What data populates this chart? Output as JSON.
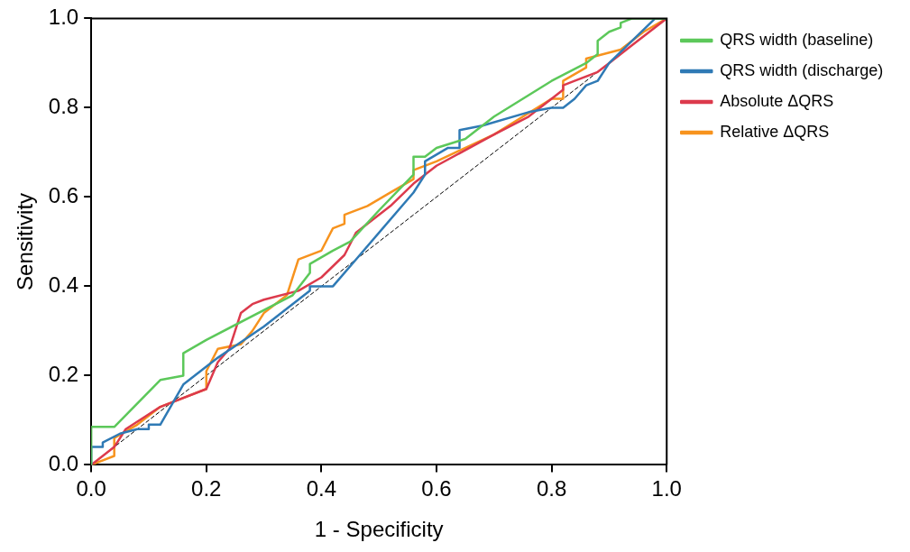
{
  "chart_data": {
    "type": "line",
    "xlabel": "1 - Specificity",
    "ylabel": "Sensitivity",
    "xlim": [
      0,
      1
    ],
    "ylim": [
      0,
      1
    ],
    "xticks": [
      {
        "value": 0,
        "label": "0.0"
      },
      {
        "value": 0.2,
        "label": "0.2"
      },
      {
        "value": 0.4,
        "label": "0.4"
      },
      {
        "value": 0.6,
        "label": "0.6"
      },
      {
        "value": 0.8,
        "label": "0.8"
      },
      {
        "value": 1,
        "label": "1.0"
      }
    ],
    "yticks": [
      {
        "value": 0,
        "label": "0.0"
      },
      {
        "value": 0.2,
        "label": "0.2"
      },
      {
        "value": 0.4,
        "label": "0.4"
      },
      {
        "value": 0.6,
        "label": "0.6"
      },
      {
        "value": 0.8,
        "label": "0.8"
      },
      {
        "value": 1,
        "label": "1.0"
      }
    ],
    "grid": false,
    "legend": "right",
    "marker": "none",
    "line_style": "solid",
    "series": [
      {
        "name": "QRS width (baseline)",
        "color": "#5cc85a",
        "x": [
          0,
          0,
          0.04,
          0.12,
          0.16,
          0.16,
          0.2,
          0.35,
          0.38,
          0.38,
          0.42,
          0.45,
          0.5,
          0.56,
          0.56,
          0.58,
          0.6,
          0.65,
          0.7,
          0.8,
          0.86,
          0.88,
          0.88,
          0.9,
          0.92,
          0.92,
          0.94,
          1
        ],
        "values": [
          0,
          0.085,
          0.085,
          0.19,
          0.2,
          0.25,
          0.28,
          0.38,
          0.43,
          0.45,
          0.48,
          0.5,
          0.57,
          0.65,
          0.69,
          0.69,
          0.71,
          0.73,
          0.78,
          0.86,
          0.9,
          0.92,
          0.95,
          0.97,
          0.98,
          0.99,
          1,
          1
        ]
      },
      {
        "name": "QRS width (discharge)",
        "color": "#2f7ab5",
        "x": [
          0,
          0,
          0.02,
          0.02,
          0.05,
          0.08,
          0.1,
          0.1,
          0.12,
          0.16,
          0.22,
          0.3,
          0.38,
          0.38,
          0.42,
          0.46,
          0.56,
          0.58,
          0.58,
          0.62,
          0.64,
          0.64,
          0.68,
          0.76,
          0.8,
          0.82,
          0.84,
          0.86,
          0.88,
          0.9,
          0.98,
          1
        ],
        "values": [
          0,
          0.04,
          0.04,
          0.05,
          0.07,
          0.08,
          0.08,
          0.09,
          0.09,
          0.18,
          0.24,
          0.31,
          0.39,
          0.4,
          0.4,
          0.46,
          0.61,
          0.65,
          0.68,
          0.71,
          0.71,
          0.75,
          0.76,
          0.79,
          0.8,
          0.8,
          0.82,
          0.85,
          0.86,
          0.9,
          1,
          1
        ]
      },
      {
        "name": "Absolute ΔQRS",
        "color": "#dc3a4c",
        "x": [
          0,
          0.04,
          0.06,
          0.12,
          0.2,
          0.22,
          0.24,
          0.26,
          0.28,
          0.3,
          0.36,
          0.4,
          0.44,
          0.46,
          0.52,
          0.56,
          0.6,
          0.7,
          0.76,
          0.8,
          0.82,
          0.82,
          0.84,
          0.88,
          0.9,
          0.94,
          1
        ],
        "values": [
          0,
          0.04,
          0.08,
          0.13,
          0.17,
          0.23,
          0.26,
          0.34,
          0.36,
          0.37,
          0.39,
          0.42,
          0.47,
          0.52,
          0.58,
          0.63,
          0.67,
          0.74,
          0.78,
          0.82,
          0.84,
          0.85,
          0.86,
          0.88,
          0.9,
          0.94,
          1
        ]
      },
      {
        "name": "Relative ΔQRS",
        "color": "#f7931e",
        "x": [
          0,
          0.04,
          0.04,
          0.08,
          0.12,
          0.16,
          0.2,
          0.2,
          0.22,
          0.26,
          0.28,
          0.3,
          0.34,
          0.36,
          0.4,
          0.42,
          0.44,
          0.44,
          0.48,
          0.52,
          0.56,
          0.56,
          0.6,
          0.7,
          0.8,
          0.82,
          0.82,
          0.86,
          0.86,
          0.92,
          0.96,
          1
        ],
        "values": [
          0,
          0.02,
          0.06,
          0.09,
          0.13,
          0.15,
          0.17,
          0.21,
          0.26,
          0.27,
          0.3,
          0.34,
          0.38,
          0.46,
          0.48,
          0.53,
          0.54,
          0.56,
          0.58,
          0.61,
          0.64,
          0.66,
          0.68,
          0.74,
          0.82,
          0.82,
          0.86,
          0.89,
          0.91,
          0.93,
          0.97,
          1
        ]
      },
      {
        "color": "#000000",
        "line_style": "dashed",
        "x": [
          0,
          1
        ],
        "values": [
          0,
          1
        ]
      }
    ]
  }
}
